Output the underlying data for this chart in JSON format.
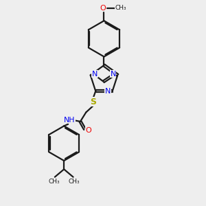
{
  "bg_color": "#eeeeee",
  "bond_color": "#1a1a1a",
  "N_color": "#0000ee",
  "O_color": "#ee0000",
  "S_color": "#aaaa00",
  "line_width": 1.6,
  "dbo": 0.055,
  "xlim": [
    0,
    10
  ],
  "ylim": [
    0,
    10
  ]
}
